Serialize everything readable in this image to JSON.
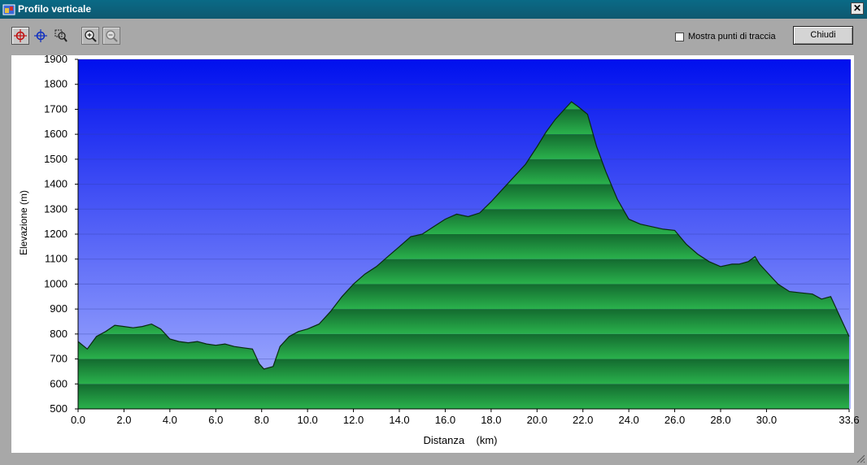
{
  "window": {
    "title": "Profilo verticale",
    "close_glyph": "✕"
  },
  "toolbar": {
    "tools": [
      {
        "name": "crosshair-red-icon",
        "active": true
      },
      {
        "name": "crosshair-blue-icon",
        "active": false
      },
      {
        "name": "zoom-area-icon",
        "active": false
      },
      {
        "name": "zoom-in-icon",
        "active": false
      },
      {
        "name": "zoom-out-icon",
        "active": false
      }
    ],
    "show_track_points_label": "Mostra punti di traccia",
    "show_track_points_checked": false,
    "close_label": "Chiudi"
  },
  "chart_data": {
    "type": "area",
    "xlabel": "Distanza    (km)",
    "ylabel": "Elevazione (m)",
    "xlim": [
      0,
      33.6
    ],
    "ylim": [
      500,
      1900
    ],
    "x_ticks": [
      "0.0",
      "2.0",
      "4.0",
      "6.0",
      "8.0",
      "10.0",
      "12.0",
      "14.0",
      "16.0",
      "18.0",
      "20.0",
      "22.0",
      "24.0",
      "26.0",
      "28.0",
      "30.0",
      "33.6"
    ],
    "x_tick_values": [
      0,
      2,
      4,
      6,
      8,
      10,
      12,
      14,
      16,
      18,
      20,
      22,
      24,
      26,
      28,
      30,
      33.6
    ],
    "y_ticks": [
      500,
      600,
      700,
      800,
      900,
      1000,
      1100,
      1200,
      1300,
      1400,
      1500,
      1600,
      1700,
      1800,
      1900
    ],
    "grid": true,
    "colors": {
      "sky_top": "#0010ee",
      "sky_bottom": "#aab6ff",
      "fill_dark": "#136a2f",
      "fill_light": "#2ab24c"
    },
    "x": [
      0,
      0.4,
      0.8,
      1.2,
      1.6,
      2.0,
      2.4,
      2.8,
      3.2,
      3.6,
      4.0,
      4.4,
      4.8,
      5.2,
      5.6,
      6.0,
      6.4,
      6.8,
      7.2,
      7.6,
      7.9,
      8.1,
      8.5,
      8.8,
      9.2,
      9.6,
      10.0,
      10.5,
      11.0,
      11.5,
      12.0,
      12.5,
      13.0,
      13.5,
      14.0,
      14.5,
      15.0,
      15.5,
      16.0,
      16.5,
      17.0,
      17.5,
      18.0,
      18.5,
      19.0,
      19.5,
      20.0,
      20.4,
      20.8,
      21.2,
      21.5,
      21.8,
      22.2,
      22.6,
      23.0,
      23.5,
      24.0,
      24.5,
      25.0,
      25.5,
      26.0,
      26.5,
      27.0,
      27.5,
      28.0,
      28.5,
      28.8,
      29.2,
      29.5,
      29.7,
      30.0,
      30.5,
      31.0,
      31.5,
      32.0,
      32.4,
      32.8,
      33.2,
      33.6
    ],
    "values": [
      770,
      740,
      790,
      810,
      835,
      830,
      825,
      830,
      840,
      820,
      780,
      770,
      765,
      770,
      760,
      755,
      760,
      750,
      745,
      740,
      680,
      660,
      670,
      750,
      790,
      810,
      820,
      840,
      890,
      950,
      1000,
      1040,
      1070,
      1110,
      1150,
      1190,
      1200,
      1230,
      1260,
      1280,
      1270,
      1285,
      1330,
      1380,
      1430,
      1480,
      1550,
      1610,
      1660,
      1700,
      1730,
      1710,
      1680,
      1550,
      1450,
      1340,
      1260,
      1240,
      1230,
      1220,
      1215,
      1160,
      1120,
      1090,
      1070,
      1080,
      1080,
      1090,
      1110,
      1080,
      1050,
      1000,
      970,
      965,
      960,
      940,
      950,
      870,
      790
    ]
  }
}
